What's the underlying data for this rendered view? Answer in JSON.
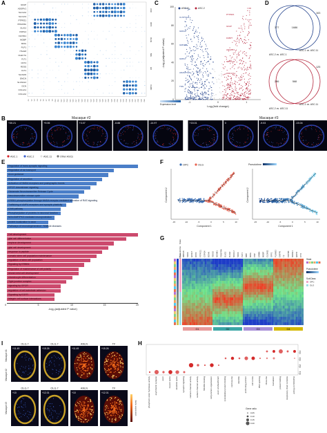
{
  "panelA": {
    "letter": "A",
    "genes": [
      "GFAP",
      "ADGRV1",
      "SLC1A2",
      "SLC1A3",
      "PTPRZ1",
      "PDGFRA",
      "OLIG2",
      "CSPG4",
      "CLDN11",
      "MOBP",
      "MOG",
      "PLP1",
      "ITGAM",
      "CLEC7A",
      "FLT1",
      "CD74",
      "ROS5",
      "FLT1",
      "SLC6A5",
      "EMCN",
      "SLC6A12",
      "DCN",
      "COL1A1",
      "COL1A2"
    ],
    "group_labels": [
      "ASC",
      "OPC",
      "OLIG",
      "MG",
      "EC",
      "VLMC"
    ],
    "legend_label": "Expression level",
    "legend_low": "0.0",
    "legend_high": "1.0"
  },
  "panelB": {
    "letter": "B",
    "titles": [
      "Macaque #2",
      "Macaque #3"
    ],
    "slice_labels": [
      "+30.21",
      "+9.06",
      "+3.07",
      "-5.88",
      "-14.97",
      "+15.01",
      "0",
      "-9.03",
      "-15.04"
    ],
    "legend": [
      "ASC.1",
      "ASC.2",
      "ASC.11",
      "Other ASCs"
    ],
    "legend_colors": [
      "#d6262b",
      "#3a5fcd",
      "#e0e0e0",
      "#7a7a7a"
    ]
  },
  "panelC": {
    "letter": "C",
    "legend": [
      "ASC.11",
      "ASC.2"
    ],
    "xlabel": "Log₂(fold change)",
    "ylabel": "-Log₁₀(adjusted P value)",
    "xticks": [
      "-1",
      "0",
      "1"
    ],
    "yticks": [
      "0",
      "20",
      "40",
      "60",
      "80",
      "100"
    ],
    "blue_genes": [
      "CLSTN2",
      "GRIA4",
      "GRIN2B",
      "GRIK2",
      "ADAMTS16",
      "TNN"
    ],
    "red_genes": [
      "PTPRZ1",
      "GFAP",
      "FABP7",
      "ADGRV1",
      "NOTCH2",
      "HSD17A1",
      "MKI3"
    ]
  },
  "panelD": {
    "letter": "D",
    "venn1": {
      "left": "377",
      "mid": "1686",
      "right": "163",
      "label_left": "ASC.2 vs. ASC.1",
      "label_right": "ASC.1 vs. ASC.11"
    },
    "venn2": {
      "left": "286",
      "mid": "568",
      "right": "125",
      "label_left": "ASC.2 vs. ASC.11",
      "label_right": "ASC.1 vs. ASC.11"
    }
  },
  "panelE": {
    "letter": "E",
    "blue_terms": [
      "Regulation of trans-synaptic signaling",
      "Regulation of ion transport",
      "Axon guidance",
      "Regulation of secretion",
      "Activation of NMDA receptors and postsynaptic events",
      "GPCR downstream signaling",
      "Glutamate Neurotransmitter Release Cycle",
      "Neurotransmitter release cycle",
      "CREB1 phosphorylation through NMDA receptor-mediated activation of RAS signaling",
      "Trafficking of AMPA receptors and synaptic plasticity",
      "CAM pathway",
      "Phosphorylation of proteins in neuronal function",
      "NO/cGMP/PKG mediated neuroprotection",
      "protein localization to axon",
      "Pathways of neurodegeneration - Multiple diseases"
    ],
    "blue_values": [
      22,
      18,
      17,
      16,
      15,
      14,
      13,
      12,
      11,
      10,
      9,
      9,
      8,
      7,
      7
    ],
    "red_terms": [
      "Cell development",
      "glial cell differentiation",
      "nephron development",
      "glial cell development",
      "response to peptide",
      "somatic stem cell population maintenance",
      "regulation of stem cell population",
      "Signaling by ERBB4",
      "Regulation of maintenance of cell polarity",
      "neural crest cell development",
      "chondrocyte differentiation",
      "Tight junction complex",
      "signaling by GPCR",
      "regulation of cell-substrate adhesion",
      "Signaling by EGFR",
      "Integrin cell surface interactions"
    ],
    "red_values": [
      22,
      20,
      18,
      17,
      16,
      15,
      14,
      13,
      12,
      12,
      11,
      10,
      9,
      9,
      8,
      8
    ],
    "xlabel": "-log₁₀(adjusted P value)",
    "xticks": [
      "0",
      "5",
      "10",
      "15",
      "20"
    ]
  },
  "panelF": {
    "letter": "F",
    "legend": [
      "OPC",
      "OLG"
    ],
    "legend_colors": [
      "#3b6fb5",
      "#e8614f"
    ],
    "pseudotime_label": "Pseudotime",
    "xlabel": "Component 1",
    "ylabel": "Component 2",
    "xticks": [
      "-15",
      "-10",
      "-5",
      "0",
      "5",
      "10"
    ]
  },
  "panelG": {
    "letter": "G",
    "row_labels": [
      "State",
      "Pseudotime",
      "SubClass"
    ],
    "groups": [
      "G1",
      "G2",
      "G3",
      "G4"
    ],
    "group_colors": [
      "#e89a9a",
      "#3da7a7",
      "#a88ed8",
      "#d5b800"
    ],
    "genes_g1": [
      "MBP1B",
      "SOX6",
      "GPR17",
      "DPP6",
      "PTPRZ1",
      "CSPG4",
      "BCAN",
      "SOX10"
    ],
    "genes_g2": [
      "NCAM1",
      "PDGFRA",
      "OLIG1",
      "OLIG2",
      "NKX2-2",
      "SOX6"
    ],
    "genes_g3": [
      "PLP1",
      "MBP",
      "MOG",
      "CNP",
      "ERMN",
      "MOBP",
      "CLDN11"
    ],
    "genes_g4": [
      "SPP1",
      "PLXNB3",
      "ENPP6",
      "TF",
      "CRYAB",
      "NDRG1",
      "QDPR",
      "CTD"
    ],
    "legend_state": "State",
    "legend_pseudotime": "Pseudotime",
    "legend_subclass": "SubClass",
    "legend_subclass_items": [
      "OPC",
      "OLG"
    ]
  },
  "panelH": {
    "letter": "H",
    "terms": [
      "phosphoric ester hydrolase activity",
      "asymmetric synapse",
      "axon",
      "neuron spine",
      "dendritic spine",
      "synaptic signaling",
      "calcium channel activity",
      "sodium channel activity",
      "SNARE binding",
      "cell junction organization",
      "axon ensheathment",
      "cytoskeletal protein binding",
      "centrosome",
      "dendrite",
      "anchoring junction",
      "cell cortex",
      "RNA splicing",
      "ribosome",
      "translation",
      "protein folding",
      "respiratory chain complex",
      "acting on NAD(P)H"
    ],
    "groups": [
      "G1",
      "G2",
      "G3",
      "G4"
    ],
    "legend_title": "Gene ratio",
    "legend_sizes": [
      "0.05",
      "0.10",
      "0.15",
      "0.20"
    ]
  },
  "panelI": {
    "letter": "I",
    "top_titles": [
      "OLG.7",
      "OLG.7",
      "ANLN",
      "TF"
    ],
    "top_values": [
      "+11.49",
      "+15.26",
      "+11.49",
      "+15.26"
    ],
    "row_labels": [
      "Macaque #1",
      "Macaque #2",
      "Macaque #3"
    ],
    "bottom_titles": [
      "OLG.7",
      "OLG.7",
      "ANLN",
      "TF"
    ],
    "bottom_values": [
      "+10",
      "+12.01",
      "+10",
      "+12.01"
    ],
    "legend_label": "Gene expression"
  }
}
